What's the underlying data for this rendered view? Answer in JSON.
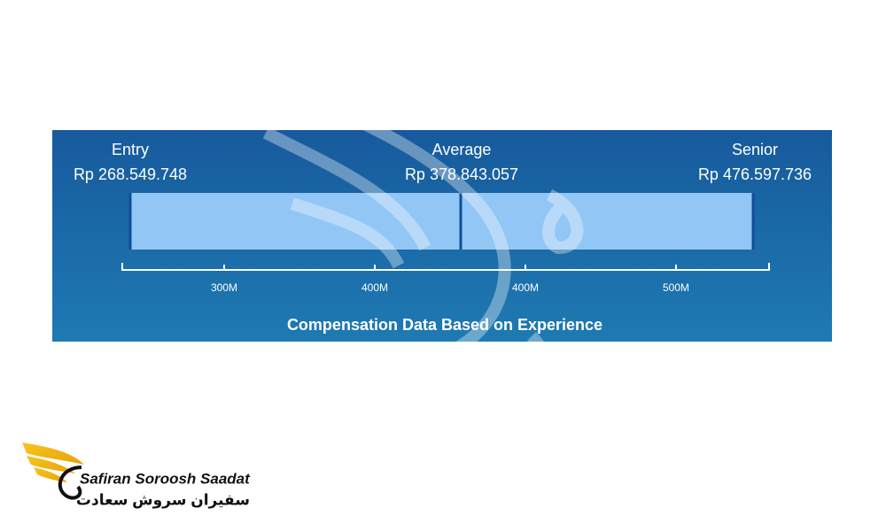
{
  "panel": {
    "levels": [
      {
        "label": "Entry",
        "amount": "Rp 268.549.748"
      },
      {
        "label": "Average",
        "amount": "Rp 378.843.057"
      },
      {
        "label": "Senior",
        "amount": "Rp 476.597.736"
      }
    ],
    "axis_labels": [
      "300M",
      "400M",
      "400M",
      "500M"
    ],
    "caption": "Compensation Data Based on Experience"
  },
  "logo": {
    "name": "Safiran Soroosh Saadat",
    "name_fa": "سفیران سروش سعادت"
  }
}
